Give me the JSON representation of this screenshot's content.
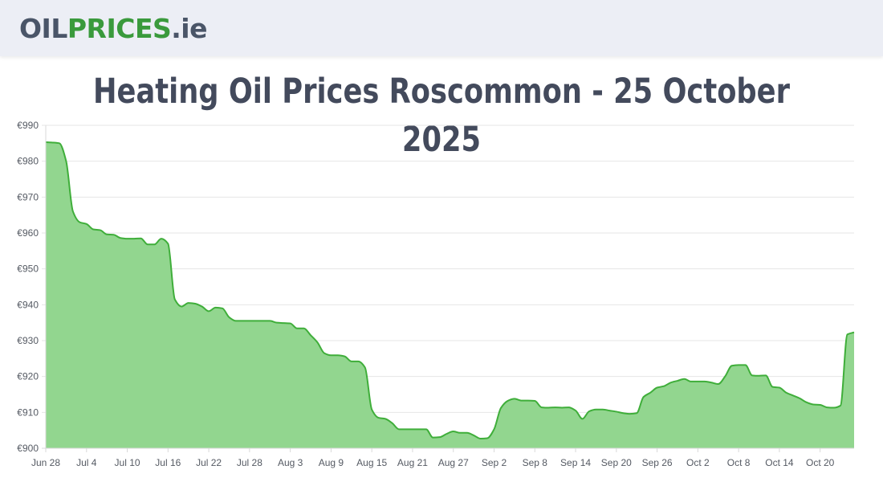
{
  "header": {
    "logo": {
      "part_a": "OIL",
      "part_b": "PRICES",
      "part_c": ".ie"
    },
    "background": "#eceef5"
  },
  "page": {
    "title": "Heating Oil Prices Roscommon - 25 October 2025"
  },
  "chart_data": {
    "type": "area",
    "title": "Heating Oil Prices Roscommon - 25 October 2025",
    "xlabel": "",
    "ylabel": "",
    "ylim": [
      900,
      990
    ],
    "y_ticks": [
      {
        "value": 990,
        "label": "€990"
      },
      {
        "value": 980,
        "label": "€980"
      },
      {
        "value": 970,
        "label": "€970"
      },
      {
        "value": 960,
        "label": "€960"
      },
      {
        "value": 950,
        "label": "€950"
      },
      {
        "value": 940,
        "label": "€940"
      },
      {
        "value": 930,
        "label": "€930"
      },
      {
        "value": 920,
        "label": "€920"
      },
      {
        "value": 910,
        "label": "€910"
      },
      {
        "value": 900,
        "label": "€900"
      }
    ],
    "x_ticks": [
      {
        "day": 0,
        "label": "Jun 28"
      },
      {
        "day": 6,
        "label": "Jul 4"
      },
      {
        "day": 12,
        "label": "Jul 10"
      },
      {
        "day": 18,
        "label": "Jul 16"
      },
      {
        "day": 24,
        "label": "Jul 22"
      },
      {
        "day": 30,
        "label": "Jul 28"
      },
      {
        "day": 36,
        "label": "Aug 3"
      },
      {
        "day": 42,
        "label": "Aug 9"
      },
      {
        "day": 48,
        "label": "Aug 15"
      },
      {
        "day": 54,
        "label": "Aug 21"
      },
      {
        "day": 60,
        "label": "Aug 27"
      },
      {
        "day": 66,
        "label": "Sep 2"
      },
      {
        "day": 72,
        "label": "Sep 8"
      },
      {
        "day": 78,
        "label": "Sep 14"
      },
      {
        "day": 84,
        "label": "Sep 20"
      },
      {
        "day": 90,
        "label": "Sep 26"
      },
      {
        "day": 96,
        "label": "Oct 2"
      },
      {
        "day": 102,
        "label": "Oct 8"
      },
      {
        "day": 108,
        "label": "Oct 14"
      },
      {
        "day": 114,
        "label": "Oct 20"
      }
    ],
    "x_max_day": 119,
    "grid": true,
    "line_color": "#3fae3a",
    "fill_color": "#92d68f",
    "series": [
      {
        "points": [
          [
            0,
            985.3
          ],
          [
            1,
            985.2
          ],
          [
            2,
            985.0
          ],
          [
            3,
            980.0
          ],
          [
            4,
            966.0
          ],
          [
            5,
            963.0
          ],
          [
            6,
            962.5
          ],
          [
            7,
            961.0
          ],
          [
            8,
            960.8
          ],
          [
            9,
            959.6
          ],
          [
            10,
            959.5
          ],
          [
            11,
            958.6
          ],
          [
            12,
            958.4
          ],
          [
            13,
            958.4
          ],
          [
            14,
            958.5
          ],
          [
            15,
            956.8
          ],
          [
            16,
            956.8
          ],
          [
            17,
            958.4
          ],
          [
            18,
            957.0
          ],
          [
            19,
            941.5
          ],
          [
            20,
            939.5
          ],
          [
            21,
            940.5
          ],
          [
            22,
            940.3
          ],
          [
            23,
            939.5
          ],
          [
            24,
            938.2
          ],
          [
            25,
            939.2
          ],
          [
            26,
            939.0
          ],
          [
            27,
            936.5
          ],
          [
            28,
            935.5
          ],
          [
            29,
            935.5
          ],
          [
            30,
            935.5
          ],
          [
            31,
            935.5
          ],
          [
            32,
            935.5
          ],
          [
            33,
            935.5
          ],
          [
            34,
            935.0
          ],
          [
            35,
            934.9
          ],
          [
            36,
            934.8
          ],
          [
            37,
            933.4
          ],
          [
            38,
            933.4
          ],
          [
            39,
            931.5
          ],
          [
            40,
            929.5
          ],
          [
            41,
            926.5
          ],
          [
            42,
            925.9
          ],
          [
            43,
            925.9
          ],
          [
            44,
            925.6
          ],
          [
            45,
            924.2
          ],
          [
            46,
            924.2
          ],
          [
            47,
            922.5
          ],
          [
            48,
            910.8
          ],
          [
            49,
            908.5
          ],
          [
            50,
            908.2
          ],
          [
            51,
            907.0
          ],
          [
            52,
            905.3
          ],
          [
            53,
            905.3
          ],
          [
            54,
            905.3
          ],
          [
            55,
            905.3
          ],
          [
            56,
            905.3
          ],
          [
            57,
            903.0
          ],
          [
            58,
            903.1
          ],
          [
            59,
            904.0
          ],
          [
            60,
            904.7
          ],
          [
            61,
            904.3
          ],
          [
            62,
            904.3
          ],
          [
            63,
            903.6
          ],
          [
            64,
            902.7
          ],
          [
            65,
            902.8
          ],
          [
            66,
            905.3
          ],
          [
            67,
            911.2
          ],
          [
            68,
            913.2
          ],
          [
            69,
            913.8
          ],
          [
            70,
            913.3
          ],
          [
            71,
            913.3
          ],
          [
            72,
            913.2
          ],
          [
            73,
            911.4
          ],
          [
            74,
            911.3
          ],
          [
            75,
            911.4
          ],
          [
            76,
            911.3
          ],
          [
            77,
            911.4
          ],
          [
            78,
            910.5
          ],
          [
            79,
            908.2
          ],
          [
            80,
            910.3
          ],
          [
            81,
            910.8
          ],
          [
            82,
            910.8
          ],
          [
            83,
            910.5
          ],
          [
            84,
            910.2
          ],
          [
            85,
            909.8
          ],
          [
            86,
            909.6
          ],
          [
            87,
            909.8
          ],
          [
            88,
            914.3
          ],
          [
            89,
            915.5
          ],
          [
            90,
            916.9
          ],
          [
            91,
            917.3
          ],
          [
            92,
            918.3
          ],
          [
            93,
            918.8
          ],
          [
            94,
            919.3
          ],
          [
            95,
            918.6
          ],
          [
            96,
            918.6
          ],
          [
            97,
            918.6
          ],
          [
            98,
            918.3
          ],
          [
            99,
            917.9
          ],
          [
            100,
            920.0
          ],
          [
            101,
            923.0
          ],
          [
            102,
            923.2
          ],
          [
            103,
            923.2
          ],
          [
            104,
            920.3
          ],
          [
            105,
            920.2
          ],
          [
            106,
            920.3
          ],
          [
            107,
            917.1
          ],
          [
            108,
            916.9
          ],
          [
            109,
            915.5
          ],
          [
            110,
            914.7
          ],
          [
            111,
            913.9
          ],
          [
            112,
            912.8
          ],
          [
            113,
            912.2
          ],
          [
            114,
            912.1
          ],
          [
            115,
            911.4
          ],
          [
            116,
            911.3
          ],
          [
            117,
            911.9
          ],
          [
            118,
            931.7
          ],
          [
            119,
            932.3
          ]
        ]
      }
    ]
  }
}
